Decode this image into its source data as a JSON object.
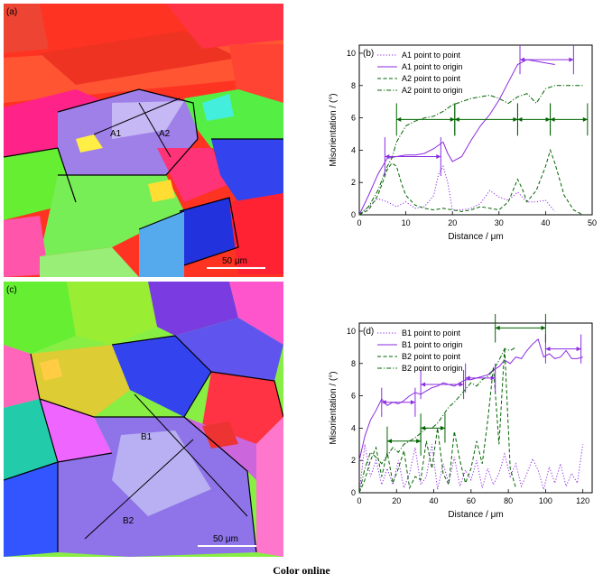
{
  "figure": {
    "caption": "Color online",
    "map_a": {
      "label": "(a)",
      "line_labels": [
        "A1",
        "A2"
      ],
      "scale": "50 μm"
    },
    "map_c": {
      "label": "(c)",
      "line_labels": [
        "B1",
        "B2"
      ],
      "scale": "50 μm"
    }
  },
  "chart_data": [
    {
      "type": "line",
      "panel": "(b)",
      "xlabel": "Distance / μm",
      "ylabel": "Misorientation / (°)",
      "xlim": [
        0,
        50
      ],
      "ylim": [
        0,
        10.5
      ],
      "xticks": [
        0,
        10,
        20,
        30,
        40,
        50
      ],
      "yticks": [
        0,
        2,
        4,
        6,
        8,
        10
      ],
      "legend_position": "top-left",
      "series": [
        {
          "name": "A1 point to point",
          "style": "dotted",
          "color": "#8a2be2",
          "x": [
            0,
            2,
            4,
            6,
            8,
            10,
            12,
            14,
            16,
            17,
            18,
            19,
            20,
            22,
            24,
            26,
            28,
            30,
            32,
            34,
            36,
            38,
            40,
            42
          ],
          "y": [
            0,
            0.5,
            1,
            0.8,
            0.5,
            0.8,
            0.4,
            0.5,
            1.2,
            2.5,
            3,
            2,
            0.3,
            0.3,
            0.4,
            0.7,
            1.5,
            1.1,
            0.9,
            1.4,
            0.8,
            0.8,
            0.9,
            0.2
          ]
        },
        {
          "name": "A1 point to origin",
          "style": "solid",
          "color": "#8a2be2",
          "x": [
            0,
            2,
            4,
            6,
            8,
            10,
            12,
            14,
            16,
            18,
            19,
            20,
            22,
            24,
            26,
            28,
            30,
            32,
            34,
            36,
            38,
            40,
            42
          ],
          "y": [
            0,
            1.2,
            2.5,
            3.5,
            3.6,
            3.7,
            3.7,
            3.8,
            4.1,
            4.5,
            3.8,
            3.3,
            3.6,
            4.6,
            5.5,
            6.2,
            7.1,
            8.2,
            9.3,
            9.6,
            9.5,
            9.4,
            9.3
          ]
        },
        {
          "name": "A2 point to point",
          "style": "dashed",
          "color": "#006400",
          "x": [
            0,
            2,
            4,
            6,
            7,
            8,
            9,
            10,
            12,
            14,
            16,
            18,
            20,
            22,
            24,
            26,
            28,
            30,
            32,
            34,
            35,
            36,
            38,
            40,
            41,
            42,
            44,
            46,
            48
          ],
          "y": [
            0,
            0.3,
            1.2,
            2.8,
            3.2,
            3,
            2,
            1.2,
            0.6,
            0.4,
            0.3,
            0.4,
            0.3,
            0.2,
            0.3,
            0.5,
            0.4,
            0.3,
            0.8,
            2.2,
            1.6,
            0.8,
            1.5,
            3,
            4,
            3.2,
            1.2,
            0.3,
            0
          ]
        },
        {
          "name": "A2 point to origin",
          "style": "dashdot",
          "color": "#006400",
          "x": [
            0,
            2,
            4,
            6,
            7,
            8,
            9,
            10,
            12,
            14,
            16,
            18,
            20,
            22,
            24,
            26,
            28,
            30,
            32,
            34,
            36,
            38,
            40,
            42,
            44,
            46,
            48
          ],
          "y": [
            0,
            0.5,
            1.5,
            3,
            3.5,
            4.5,
            5,
            5.5,
            5.8,
            6,
            6.1,
            6.4,
            6.8,
            7,
            7.2,
            7.3,
            7.4,
            7.2,
            6.9,
            7.3,
            7.5,
            6.9,
            7.8,
            8,
            8,
            8,
            8
          ]
        }
      ],
      "markers": [
        {
          "color": "#8a2be2",
          "range": [
            5.5,
            17.5
          ],
          "y": 3.6,
          "tick_half": 1.2
        },
        {
          "color": "#8a2be2",
          "range": [
            34.5,
            46
          ],
          "y": 9.6,
          "tick_half": 0.9
        },
        {
          "color": "#006400",
          "range": [
            8,
            20.5
          ],
          "y": 5.9,
          "tick_half": 1
        },
        {
          "color": "#006400",
          "range": [
            20.5,
            34
          ],
          "y": 5.9,
          "tick_half": 1
        },
        {
          "color": "#006400",
          "range": [
            34,
            41
          ],
          "y": 5.9,
          "tick_half": 1
        },
        {
          "color": "#006400",
          "range": [
            41,
            49
          ],
          "y": 5.9,
          "tick_half": 1
        }
      ]
    },
    {
      "type": "line",
      "panel": "(d)",
      "xlabel": "Distance / μm",
      "ylabel": "Misorientation / (°)",
      "xlim": [
        0,
        125
      ],
      "ylim": [
        0,
        10.5
      ],
      "xticks": [
        0,
        20,
        40,
        60,
        80,
        100,
        120
      ],
      "yticks": [
        0,
        2,
        4,
        6,
        8,
        10
      ],
      "legend_position": "top-left",
      "series": [
        {
          "name": "B1 point to point",
          "style": "dotted",
          "color": "#8a2be2",
          "x": [
            0,
            3,
            6,
            9,
            12,
            15,
            18,
            21,
            24,
            27,
            30,
            33,
            36,
            39,
            42,
            45,
            48,
            51,
            54,
            57,
            60,
            63,
            66,
            69,
            72,
            75,
            78,
            81,
            84,
            87,
            90,
            93,
            96,
            99,
            102,
            105,
            108,
            111,
            114,
            117,
            120
          ],
          "y": [
            0,
            3,
            1,
            2,
            0.5,
            1.5,
            0.5,
            2,
            0.3,
            1.2,
            2.8,
            0.5,
            1,
            3,
            0.2,
            1.8,
            0.6,
            2.2,
            0.4,
            1.4,
            0.8,
            2,
            0.3,
            1.5,
            0.5,
            1.2,
            2.4,
            1,
            1.8,
            0.4,
            1.2,
            2.1,
            1.4,
            0.2,
            1.6,
            0.6,
            1.8,
            0.4,
            1.2,
            0.6,
            3
          ]
        },
        {
          "name": "B1 point to origin",
          "style": "solid",
          "color": "#8a2be2",
          "x": [
            0,
            3,
            6,
            9,
            12,
            15,
            18,
            21,
            24,
            27,
            30,
            33,
            36,
            39,
            42,
            45,
            48,
            51,
            54,
            57,
            60,
            63,
            66,
            69,
            72,
            75,
            78,
            81,
            84,
            87,
            90,
            93,
            96,
            99,
            102,
            105,
            108,
            111,
            114,
            117,
            120
          ],
          "y": [
            2,
            3.5,
            4.5,
            5.1,
            5.8,
            5.4,
            5.6,
            5.5,
            5.7,
            6,
            6.2,
            6.1,
            6.3,
            6.5,
            6.6,
            6.8,
            6.7,
            6.6,
            6.8,
            7,
            7,
            7.1,
            7.2,
            7.3,
            7.6,
            7.8,
            8.2,
            8,
            8.4,
            8.3,
            8.8,
            9.2,
            9.5,
            8.4,
            8.6,
            8.3,
            8.4,
            8.8,
            8.3,
            8.3,
            8.4
          ]
        },
        {
          "name": "B2 point to point",
          "style": "dashed",
          "color": "#006400",
          "x": [
            0,
            3,
            6,
            9,
            12,
            15,
            18,
            21,
            24,
            27,
            30,
            33,
            36,
            39,
            42,
            45,
            48,
            51,
            54,
            57,
            60,
            63,
            66,
            69,
            72,
            75,
            78,
            81,
            84
          ],
          "y": [
            0,
            0.8,
            2,
            2.8,
            1,
            2.5,
            0.6,
            1.5,
            2.6,
            0.3,
            1,
            0.8,
            3.2,
            1.5,
            4,
            1.2,
            0.5,
            3.8,
            2,
            0.6,
            1.5,
            3.2,
            1.8,
            4.5,
            7.8,
            3,
            9,
            1.5,
            0.3
          ]
        },
        {
          "name": "B2 point to origin",
          "style": "dashdot",
          "color": "#006400",
          "x": [
            0,
            3,
            6,
            9,
            12,
            15,
            18,
            21,
            24,
            27,
            30,
            33,
            36,
            39,
            42,
            45,
            48,
            51,
            54,
            57,
            60,
            63,
            66,
            69,
            72,
            75,
            78,
            81,
            84
          ],
          "y": [
            0,
            1.5,
            2.5,
            2.2,
            1.8,
            2.3,
            2.8,
            2.5,
            3,
            3.2,
            3.4,
            3.7,
            4,
            4,
            4.3,
            4.8,
            5.3,
            5.6,
            6,
            6.4,
            6.8,
            6.6,
            7,
            7.2,
            7.6,
            8.2,
            8.9,
            8.8,
            9
          ]
        }
      ],
      "markers": [
        {
          "color": "#8a2be2",
          "range": [
            12,
            30
          ],
          "y": 5.6,
          "tick_half": 0.9
        },
        {
          "color": "#8a2be2",
          "range": [
            33,
            56
          ],
          "y": 6.7,
          "tick_half": 0.9
        },
        {
          "color": "#8a2be2",
          "range": [
            57,
            73
          ],
          "y": 7.1,
          "tick_half": 0.9
        },
        {
          "color": "#8a2be2",
          "range": [
            100,
            119
          ],
          "y": 8.9,
          "tick_half": 0.9
        },
        {
          "color": "#006400",
          "range": [
            15,
            33
          ],
          "y": 3.2,
          "tick_half": 0.9
        },
        {
          "color": "#006400",
          "range": [
            33,
            46
          ],
          "y": 4.0,
          "tick_half": 0.9
        },
        {
          "color": "#006400",
          "range": [
            73,
            100
          ],
          "y": 10.2,
          "tick_half": 0.9
        }
      ]
    }
  ]
}
